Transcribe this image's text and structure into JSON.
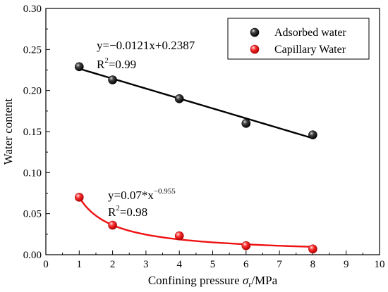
{
  "chart_data": {
    "type": "scatter",
    "xlabel": {
      "prefix": "Confining pressure ",
      "symbol": "σ",
      "sub": "r",
      "suffix": "/MPa"
    },
    "ylabel": "Water content",
    "xlim": [
      0,
      10
    ],
    "ylim": [
      0,
      0.3
    ],
    "xticks": [
      "0",
      "1",
      "2",
      "3",
      "4",
      "5",
      "6",
      "7",
      "8",
      "9",
      "10"
    ],
    "yticks": [
      "0.00",
      "0.05",
      "0.10",
      "0.15",
      "0.20",
      "0.25",
      "0.30"
    ],
    "legend_position": "top-right",
    "series": [
      {
        "name": "Adsorbed water",
        "color": "#000000",
        "x": [
          1,
          2,
          4,
          6,
          8
        ],
        "y": [
          0.229,
          0.213,
          0.19,
          0.16,
          0.146
        ],
        "fit": {
          "kind": "linear",
          "slope": -0.0121,
          "intercept": 0.2387,
          "x_range": [
            1,
            8
          ]
        }
      },
      {
        "name": "Capillary Water",
        "color": "#ee1111",
        "x": [
          1,
          2,
          4,
          6,
          8
        ],
        "y": [
          0.07,
          0.036,
          0.023,
          0.011,
          0.007
        ],
        "fit": {
          "kind": "power",
          "a": 0.07,
          "b": -0.955,
          "x_range": [
            1,
            8
          ]
        }
      }
    ],
    "annotations": [
      {
        "id": "adsorbed_eq",
        "text": "y=−0.0121x+0.2387"
      },
      {
        "id": "adsorbed_r2",
        "base": "R",
        "sup": "2",
        "rest": "=0.99"
      },
      {
        "id": "capillary_eq",
        "base": "y=0.07*x",
        "sup": "−0.955"
      },
      {
        "id": "capillary_r2",
        "base": "R",
        "sup": "2",
        "rest": "=0.98"
      }
    ]
  }
}
